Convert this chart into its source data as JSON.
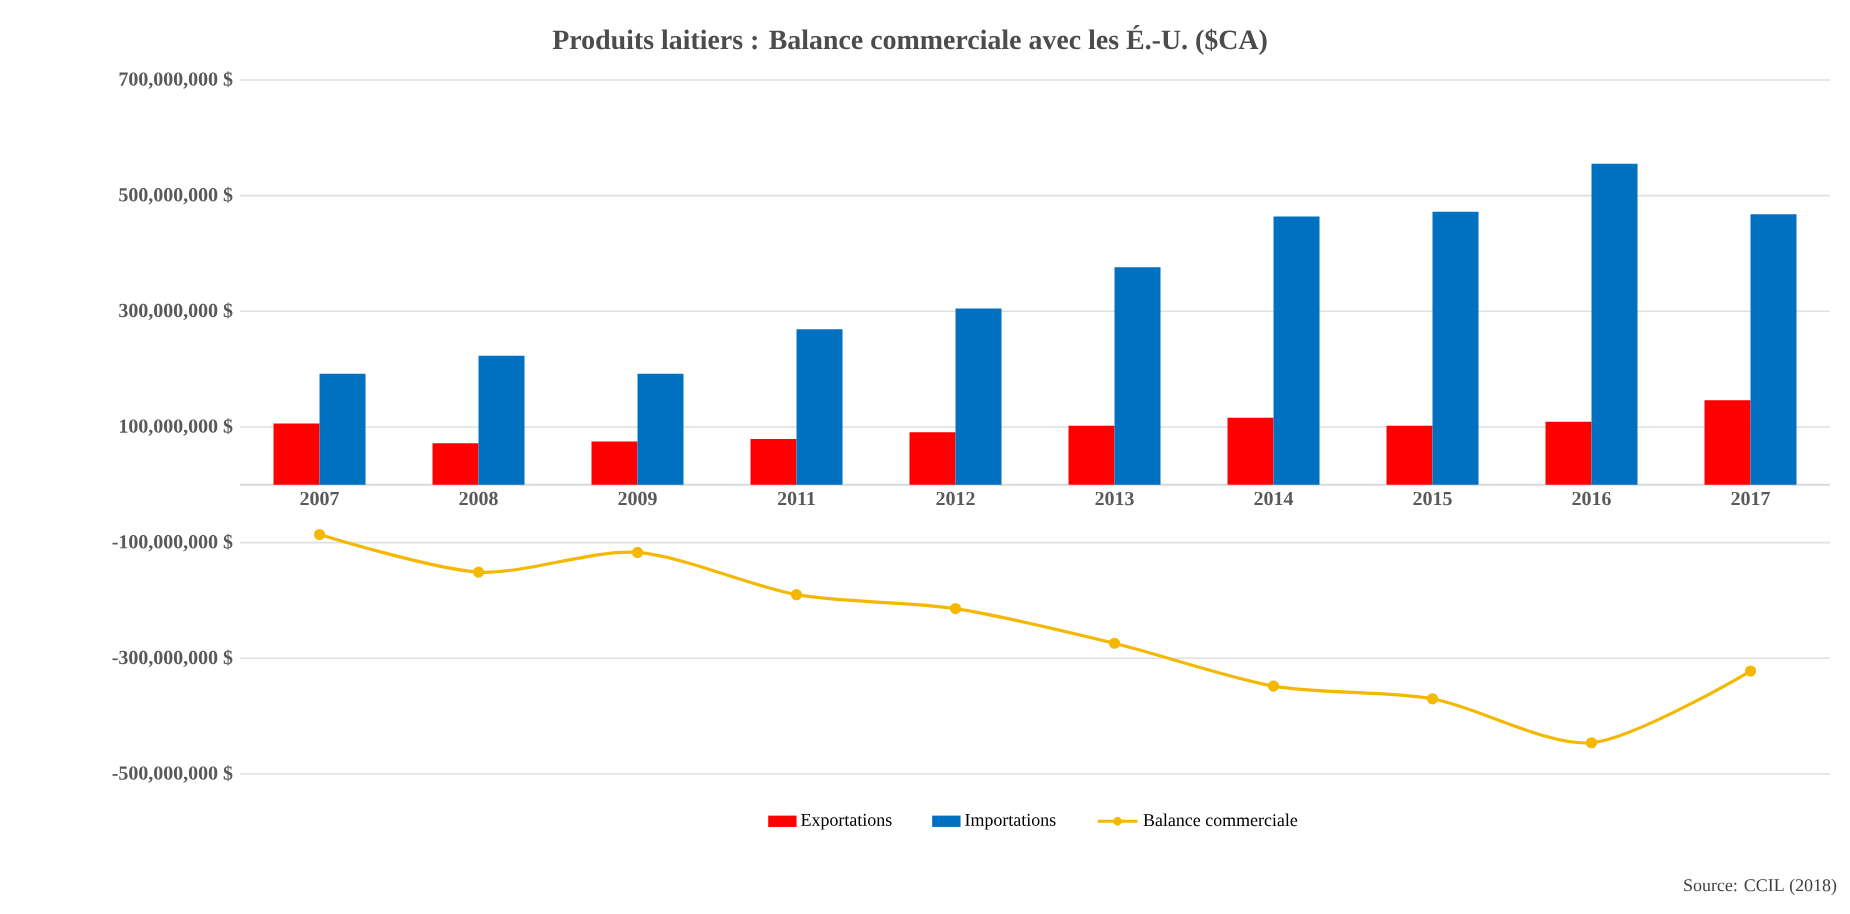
{
  "chart_data": {
    "type": "bar",
    "title": "Produits laitiers : Balance commerciale avec les É.-U. ($CA)",
    "categories": [
      "2007",
      "2008",
      "2009",
      "2011",
      "2012",
      "2013",
      "2014",
      "2015",
      "2016",
      "2017"
    ],
    "series": [
      {
        "name": "Exportations",
        "color": "#ff0000",
        "values": [
          106000000,
          72000000,
          75000000,
          79000000,
          91000000,
          102000000,
          116000000,
          102000000,
          109000000,
          146000000
        ]
      },
      {
        "name": "Importations",
        "color": "#0070c0",
        "values": [
          192000000,
          223000000,
          192000000,
          269000000,
          305000000,
          376000000,
          464000000,
          472000000,
          555000000,
          468000000
        ]
      },
      {
        "name": "Balance commerciale",
        "type": "line",
        "color": "#f5b800",
        "marker": "circle",
        "values": [
          -86000000,
          -151000000,
          -117000000,
          -190000000,
          -214000000,
          -274000000,
          -348000000,
          -370000000,
          -446000000,
          -322000000
        ]
      }
    ],
    "ylim": [
      -500000000,
      700000000
    ],
    "yticks": [
      {
        "value": -500000000,
        "label": "-500,000,000 $"
      },
      {
        "value": -300000000,
        "label": "-300,000,000 $"
      },
      {
        "value": -100000000,
        "label": "-100,000,000 $"
      },
      {
        "value": 100000000,
        "label": "100,000,000 $"
      },
      {
        "value": 300000000,
        "label": "300,000,000 $"
      },
      {
        "value": 500000000,
        "label": "500,000,000 $"
      },
      {
        "value": 700000000,
        "label": "700,000,000 $"
      }
    ],
    "grid": "y",
    "legend": "bottom",
    "annotations": [
      "Source: CCIL (2018)"
    ]
  }
}
